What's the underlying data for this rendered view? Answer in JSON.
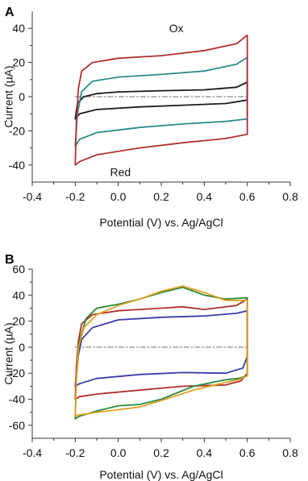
{
  "chart_data": [
    {
      "type": "line",
      "panel": "A",
      "xlabel": "Potential (V) vs. Ag/AgCl",
      "ylabel": "Current (µA)",
      "xlim": [
        -0.4,
        0.8
      ],
      "ylim": [
        -50,
        50
      ],
      "xticks": [
        -0.4,
        -0.2,
        0.0,
        0.2,
        0.4,
        0.6,
        0.8
      ],
      "xtick_labels": [
        "-0.4",
        "-0.2",
        "0.0",
        "0.2",
        "0.4",
        "0.6",
        "0.8"
      ],
      "yticks": [
        -40,
        -20,
        0,
        20,
        40
      ],
      "ytick_labels": [
        "-40",
        "-20",
        "0",
        "20",
        "40"
      ],
      "grid": false,
      "annotations": [
        {
          "text": "Ox",
          "x": 0.27,
          "y": 40
        },
        {
          "text": "Red",
          "x": 0.01,
          "y": -44
        }
      ],
      "series": [
        {
          "color": "#8b8b8b",
          "dashed": true,
          "points": [
            [
              -0.2,
              0
            ],
            [
              0.6,
              0
            ]
          ]
        },
        {
          "color": "#1a1a1a",
          "points": [
            [
              -0.2,
              -13
            ],
            [
              -0.19,
              -4
            ],
            [
              -0.16,
              0
            ],
            [
              -0.1,
              1.8
            ],
            [
              0.0,
              2.8
            ],
            [
              0.2,
              3.5
            ],
            [
              0.4,
              4
            ],
            [
              0.55,
              5.5
            ],
            [
              0.6,
              8.5
            ],
            [
              0.6,
              -2
            ],
            [
              0.5,
              -4
            ],
            [
              0.3,
              -5
            ],
            [
              0.1,
              -6
            ],
            [
              -0.1,
              -7.5
            ],
            [
              -0.18,
              -10
            ],
            [
              -0.2,
              -13
            ]
          ]
        },
        {
          "color": "#2e8b8b",
          "points": [
            [
              -0.2,
              -29
            ],
            [
              -0.19,
              -10
            ],
            [
              -0.17,
              3
            ],
            [
              -0.12,
              9
            ],
            [
              0.0,
              11.5
            ],
            [
              0.2,
              13
            ],
            [
              0.4,
              15
            ],
            [
              0.55,
              19
            ],
            [
              0.6,
              23
            ],
            [
              0.6,
              -13
            ],
            [
              0.5,
              -14.5
            ],
            [
              0.3,
              -16
            ],
            [
              0.1,
              -18
            ],
            [
              -0.1,
              -21
            ],
            [
              -0.18,
              -25
            ],
            [
              -0.2,
              -29
            ]
          ]
        },
        {
          "color": "#b03030",
          "points": [
            [
              -0.2,
              -40
            ],
            [
              -0.195,
              -15
            ],
            [
              -0.185,
              5
            ],
            [
              -0.17,
              15
            ],
            [
              -0.12,
              20
            ],
            [
              0.0,
              22.5
            ],
            [
              0.2,
              24
            ],
            [
              0.4,
              27
            ],
            [
              0.55,
              31
            ],
            [
              0.6,
              36
            ],
            [
              0.6,
              -22
            ],
            [
              0.5,
              -24.5
            ],
            [
              0.3,
              -27
            ],
            [
              0.1,
              -30
            ],
            [
              -0.1,
              -34
            ],
            [
              -0.18,
              -38
            ],
            [
              -0.2,
              -40
            ]
          ]
        }
      ]
    },
    {
      "type": "line",
      "panel": "B",
      "xlabel": "Potential (V) vs. Ag/AgCl",
      "ylabel": "Current (µA)",
      "xlim": [
        -0.4,
        0.8
      ],
      "ylim": [
        -70,
        60
      ],
      "xticks": [
        -0.4,
        -0.2,
        0.0,
        0.2,
        0.4,
        0.6,
        0.8
      ],
      "xtick_labels": [
        "-0.4",
        "-0.2",
        "0.0",
        "0.2",
        "0.4",
        "0.6",
        "0.8"
      ],
      "yticks": [
        -60,
        -40,
        -20,
        0,
        20,
        40,
        60
      ],
      "ytick_labels": [
        "-60",
        "-40",
        "-20",
        "0",
        "20",
        "40",
        "60"
      ],
      "grid": false,
      "series": [
        {
          "color": "#8b8b8b",
          "dashed": true,
          "points": [
            [
              -0.2,
              0
            ],
            [
              0.6,
              0
            ]
          ]
        },
        {
          "color": "#3a3aa8",
          "points": [
            [
              -0.2,
              -30
            ],
            [
              -0.19,
              -10
            ],
            [
              -0.17,
              6
            ],
            [
              -0.12,
              15
            ],
            [
              0.0,
              21
            ],
            [
              0.2,
              23
            ],
            [
              0.4,
              24
            ],
            [
              0.55,
              26
            ],
            [
              0.6,
              28
            ],
            [
              0.6,
              -7
            ],
            [
              0.58,
              -16
            ],
            [
              0.5,
              -20
            ],
            [
              0.3,
              -19.5
            ],
            [
              0.1,
              -21
            ],
            [
              -0.1,
              -24
            ],
            [
              -0.18,
              -28
            ],
            [
              -0.2,
              -30
            ]
          ]
        },
        {
          "color": "#b03030",
          "points": [
            [
              -0.2,
              -40
            ],
            [
              -0.195,
              -15
            ],
            [
              -0.185,
              5
            ],
            [
              -0.17,
              18
            ],
            [
              -0.12,
              25
            ],
            [
              0.0,
              28
            ],
            [
              0.2,
              30
            ],
            [
              0.3,
              31
            ],
            [
              0.4,
              29
            ],
            [
              0.55,
              32
            ],
            [
              0.6,
              37
            ],
            [
              0.6,
              -20
            ],
            [
              0.57,
              -26
            ],
            [
              0.5,
              -29
            ],
            [
              0.3,
              -30
            ],
            [
              0.1,
              -33
            ],
            [
              -0.1,
              -36
            ],
            [
              -0.18,
              -38
            ],
            [
              -0.2,
              -40
            ]
          ]
        },
        {
          "color": "#2a8a3a",
          "points": [
            [
              -0.2,
              -55
            ],
            [
              -0.195,
              -25
            ],
            [
              -0.18,
              5
            ],
            [
              -0.15,
              22
            ],
            [
              -0.1,
              30
            ],
            [
              0.0,
              33
            ],
            [
              0.1,
              37
            ],
            [
              0.2,
              42
            ],
            [
              0.3,
              46
            ],
            [
              0.4,
              40
            ],
            [
              0.5,
              37
            ],
            [
              0.6,
              38
            ],
            [
              0.6,
              -22
            ],
            [
              0.56,
              -24
            ],
            [
              0.5,
              -25
            ],
            [
              0.35,
              -30
            ],
            [
              0.2,
              -40
            ],
            [
              0.1,
              -44
            ],
            [
              0.0,
              -45
            ],
            [
              -0.1,
              -49
            ],
            [
              -0.18,
              -53
            ],
            [
              -0.2,
              -55
            ]
          ]
        },
        {
          "color": "#e0a020",
          "points": [
            [
              -0.2,
              -53
            ],
            [
              -0.195,
              -25
            ],
            [
              -0.185,
              0
            ],
            [
              -0.16,
              15
            ],
            [
              -0.1,
              25
            ],
            [
              0.0,
              32
            ],
            [
              0.1,
              37
            ],
            [
              0.2,
              43
            ],
            [
              0.3,
              47
            ],
            [
              0.4,
              42
            ],
            [
              0.5,
              36
            ],
            [
              0.6,
              36
            ],
            [
              0.6,
              -22
            ],
            [
              0.56,
              -25
            ],
            [
              0.5,
              -27
            ],
            [
              0.35,
              -33
            ],
            [
              0.2,
              -41
            ],
            [
              0.1,
              -46
            ],
            [
              0.0,
              -48
            ],
            [
              -0.1,
              -50
            ],
            [
              -0.18,
              -52
            ],
            [
              -0.2,
              -53
            ]
          ]
        }
      ]
    }
  ]
}
